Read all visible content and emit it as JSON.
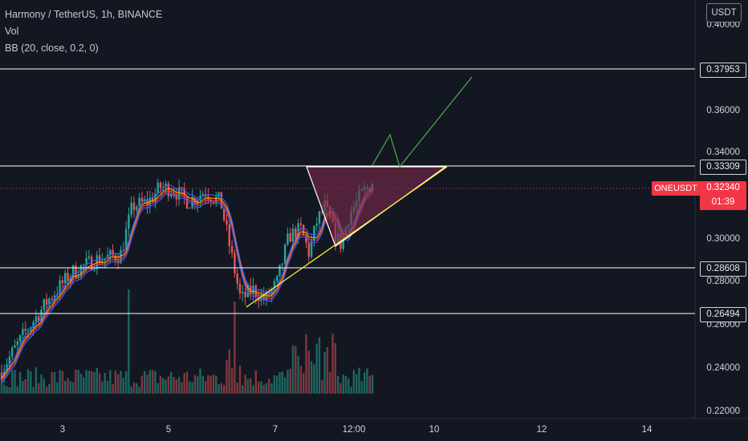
{
  "legend": {
    "title": "Harmony / TetherUS, 1h, BINANCE",
    "vol": "Vol",
    "bb": "BB (20, close, 0.2, 0)"
  },
  "price_axis": {
    "unit": "USDT",
    "ticks": [
      "0.40000",
      "0.36000",
      "0.34000",
      "0.30000",
      "0.28000",
      "0.26000",
      "0.24000",
      "0.22000"
    ]
  },
  "time_axis": {
    "ticks": [
      "3",
      "5",
      "7",
      "12:00",
      "10",
      "12",
      "14"
    ]
  },
  "levels": [
    "0.37953",
    "0.33309",
    "0.28608",
    "0.26494"
  ],
  "last_price": {
    "symbol": "ONEUSDT",
    "price": "0.32340",
    "countdown": "01:39"
  },
  "colors": {
    "background": "#131722",
    "up": "#26a69a",
    "down": "#ef5350",
    "level_line": "#ffffff",
    "triangle_fill": "#7b2a4a",
    "trendline": "#ffeb3b",
    "projection": "#4caf50",
    "ma_blue": "#2962ff",
    "ma_orange": "#ff9800",
    "ma_red": "#f23645"
  }
}
